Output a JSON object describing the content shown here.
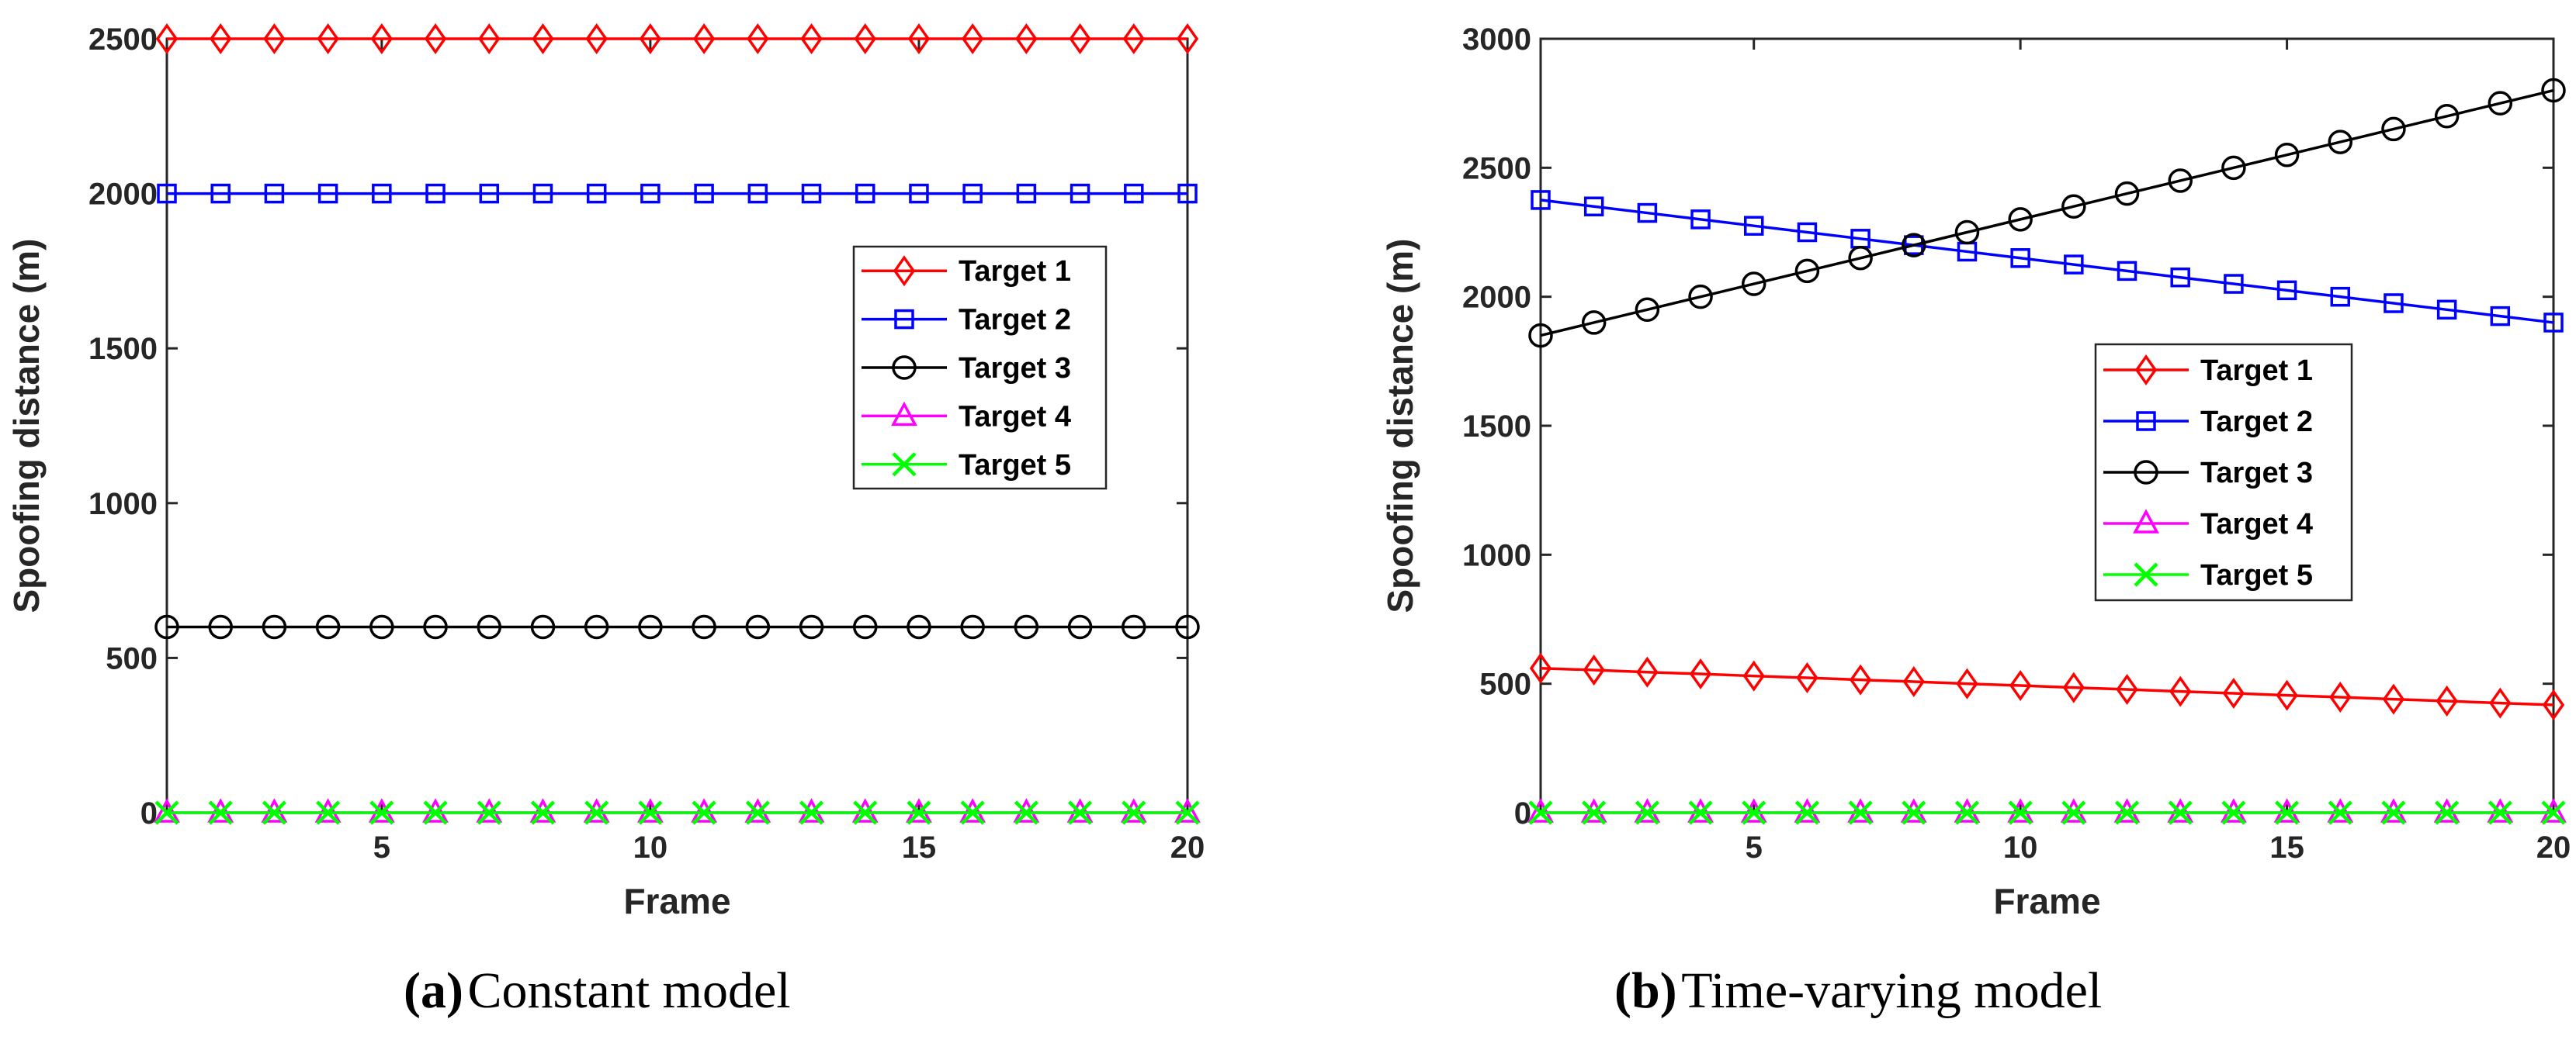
{
  "chart_data": [
    {
      "type": "line",
      "xlabel": "Frame",
      "ylabel": "Spoofing distance (m)",
      "xlim": [
        1,
        20
      ],
      "ylim": [
        0,
        2500
      ],
      "xticks": [
        5,
        10,
        15,
        20
      ],
      "yticks": [
        0,
        500,
        1000,
        1500,
        2000,
        2500
      ],
      "grid": false,
      "legend_location": "center-right",
      "x": [
        1,
        2,
        3,
        4,
        5,
        6,
        7,
        8,
        9,
        10,
        11,
        12,
        13,
        14,
        15,
        16,
        17,
        18,
        19,
        20
      ],
      "series": [
        {
          "name": "Target 1",
          "color": "#ff0000",
          "marker": "diamond",
          "values": [
            2500,
            2500,
            2500,
            2500,
            2500,
            2500,
            2500,
            2500,
            2500,
            2500,
            2500,
            2500,
            2500,
            2500,
            2500,
            2500,
            2500,
            2500,
            2500,
            2500
          ]
        },
        {
          "name": "Target 2",
          "color": "#0000ff",
          "marker": "square",
          "values": [
            2000,
            2000,
            2000,
            2000,
            2000,
            2000,
            2000,
            2000,
            2000,
            2000,
            2000,
            2000,
            2000,
            2000,
            2000,
            2000,
            2000,
            2000,
            2000,
            2000
          ]
        },
        {
          "name": "Target 3",
          "color": "#000000",
          "marker": "circle",
          "values": [
            600,
            600,
            600,
            600,
            600,
            600,
            600,
            600,
            600,
            600,
            600,
            600,
            600,
            600,
            600,
            600,
            600,
            600,
            600,
            600
          ]
        },
        {
          "name": "Target 4",
          "color": "#ff00ff",
          "marker": "triangle",
          "values": [
            0,
            0,
            0,
            0,
            0,
            0,
            0,
            0,
            0,
            0,
            0,
            0,
            0,
            0,
            0,
            0,
            0,
            0,
            0,
            0
          ]
        },
        {
          "name": "Target 5",
          "color": "#00ff00",
          "marker": "x",
          "values": [
            0,
            0,
            0,
            0,
            0,
            0,
            0,
            0,
            0,
            0,
            0,
            0,
            0,
            0,
            0,
            0,
            0,
            0,
            0,
            0
          ]
        }
      ]
    },
    {
      "type": "line",
      "xlabel": "Frame",
      "ylabel": "Spoofing distance (m)",
      "xlim": [
        1,
        20
      ],
      "ylim": [
        0,
        3000
      ],
      "xticks": [
        5,
        10,
        15,
        20
      ],
      "yticks": [
        0,
        500,
        1000,
        1500,
        2000,
        2500,
        3000
      ],
      "grid": false,
      "legend_location": "center-right",
      "x": [
        1,
        2,
        3,
        4,
        5,
        6,
        7,
        8,
        9,
        10,
        11,
        12,
        13,
        14,
        15,
        16,
        17,
        18,
        19,
        20
      ],
      "series": [
        {
          "name": "Target 1",
          "color": "#ff0000",
          "marker": "diamond",
          "values": [
            560,
            553,
            545,
            538,
            530,
            523,
            515,
            508,
            500,
            493,
            485,
            478,
            470,
            463,
            455,
            448,
            440,
            433,
            425,
            418
          ]
        },
        {
          "name": "Target 2",
          "color": "#0000ff",
          "marker": "square",
          "values": [
            2375,
            2350,
            2325,
            2300,
            2275,
            2250,
            2225,
            2200,
            2175,
            2150,
            2125,
            2100,
            2075,
            2050,
            2025,
            2000,
            1975,
            1950,
            1925,
            1900
          ]
        },
        {
          "name": "Target 3",
          "color": "#000000",
          "marker": "circle",
          "values": [
            1850,
            1900,
            1950,
            2000,
            2050,
            2100,
            2150,
            2200,
            2250,
            2300,
            2350,
            2400,
            2450,
            2500,
            2550,
            2600,
            2650,
            2700,
            2750,
            2800
          ]
        },
        {
          "name": "Target 4",
          "color": "#ff00ff",
          "marker": "triangle",
          "values": [
            0,
            0,
            0,
            0,
            0,
            0,
            0,
            0,
            0,
            0,
            0,
            0,
            0,
            0,
            0,
            0,
            0,
            0,
            0,
            0
          ]
        },
        {
          "name": "Target 5",
          "color": "#00ff00",
          "marker": "x",
          "values": [
            0,
            0,
            0,
            0,
            0,
            0,
            0,
            0,
            0,
            0,
            0,
            0,
            0,
            0,
            0,
            0,
            0,
            0,
            0,
            0
          ]
        }
      ]
    }
  ],
  "captions": [
    {
      "label": "(a)",
      "text": "Constant model"
    },
    {
      "label": "(b)",
      "text": "Time-varying model"
    }
  ]
}
